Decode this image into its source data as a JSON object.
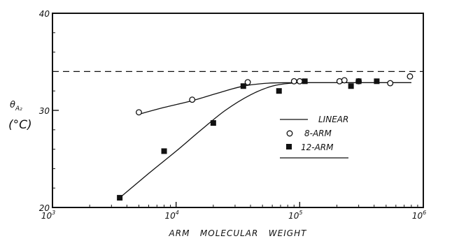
{
  "chart_data": {
    "type": "scatter",
    "xscale": "log",
    "xlim": [
      1000,
      1000000
    ],
    "ylim": [
      20,
      40
    ],
    "xticks": [
      {
        "value": 1000,
        "base": "10",
        "exp": "3"
      },
      {
        "value": 10000,
        "base": "10",
        "exp": "4"
      },
      {
        "value": 100000,
        "base": "10",
        "exp": "5"
      },
      {
        "value": 1000000,
        "base": "10",
        "exp": "6"
      }
    ],
    "yticks": [
      {
        "value": 20,
        "label": "20"
      },
      {
        "value": 30,
        "label": "30"
      },
      {
        "value": 40,
        "label": "40"
      }
    ],
    "xlabel": "ARM   MOLECULAR   WEIGHT",
    "ylabel": {
      "theta": "θ",
      "subscript": "A₂",
      "unit": "(°C)"
    },
    "grid": false,
    "legend_position": "center-right",
    "series": [
      {
        "name": "8-ARM",
        "marker": "open-circle",
        "x": [
          5000,
          13500,
          38000,
          90000,
          100000,
          210000,
          230000,
          300000,
          540000,
          780000
        ],
        "y": [
          29.8,
          31.1,
          32.9,
          33.0,
          33.0,
          33.0,
          33.1,
          33.0,
          32.8,
          33.5
        ]
      },
      {
        "name": "12-ARM",
        "marker": "filled-square",
        "x": [
          3500,
          8000,
          20000,
          35000,
          68000,
          110000,
          260000,
          300000,
          420000
        ],
        "y": [
          21.0,
          25.8,
          28.7,
          32.5,
          32.0,
          33.0,
          32.5,
          33.0,
          33.0
        ]
      }
    ],
    "reference_lines": [
      {
        "name": "LINEAR",
        "style": "dashed",
        "y": 34.0
      }
    ],
    "fit_curves": [
      {
        "for": "8-ARM",
        "x": [
          5000,
          8000,
          13500,
          22000,
          35000,
          55000,
          80000,
          120000,
          200000,
          400000,
          800000
        ],
        "y": [
          29.6,
          30.3,
          31.0,
          31.8,
          32.5,
          32.8,
          32.85,
          32.85,
          32.85,
          32.85,
          32.85
        ]
      },
      {
        "for": "12-ARM",
        "x": [
          3500,
          6000,
          10000,
          16000,
          25000,
          40000,
          60000,
          85000,
          120000,
          200000,
          400000,
          800000
        ],
        "y": [
          21.0,
          23.5,
          25.8,
          28.0,
          30.0,
          31.6,
          32.5,
          32.8,
          32.85,
          32.85,
          32.85,
          32.85
        ]
      }
    ],
    "legend": [
      {
        "label": "LINEAR",
        "symbol": "line"
      },
      {
        "label": "8-ARM",
        "symbol": "open-circle"
      },
      {
        "label": "12-ARM",
        "symbol": "filled-square"
      }
    ]
  }
}
